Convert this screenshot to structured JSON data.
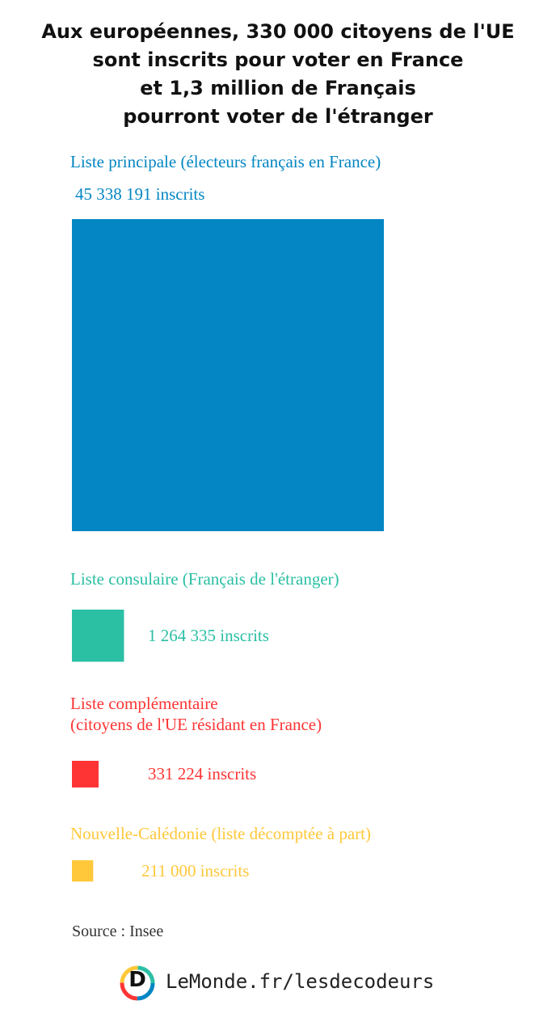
{
  "chart_data": {
    "type": "square",
    "title": "Aux européennes, 330 000 citoyens de l'UE\nsont inscrits pour voter en France\net 1,3 million de Français\npourront voter de l'étranger",
    "categories": [
      "Liste principale (électeurs français en France)",
      "Liste consulaire (Français de l'étranger)",
      "Liste complémentaire\n(citoyens de l'UE résidant en France)",
      "Nouvelle-Calédonie (liste décomptée à part)"
    ],
    "values": [
      45338191,
      1264335,
      331224,
      211000
    ],
    "value_labels": [
      "45 338 191 inscrits",
      "1 264 335 inscrits",
      "331 224 inscrits",
      "211 000 inscrits"
    ],
    "colors": [
      "#0386c3",
      "#2bbfa4",
      "#fe3434",
      "#ffc83a"
    ],
    "source": "Source : Insee",
    "logo_letter": "D",
    "credit": "LeMonde.fr/lesdecodeurs"
  }
}
